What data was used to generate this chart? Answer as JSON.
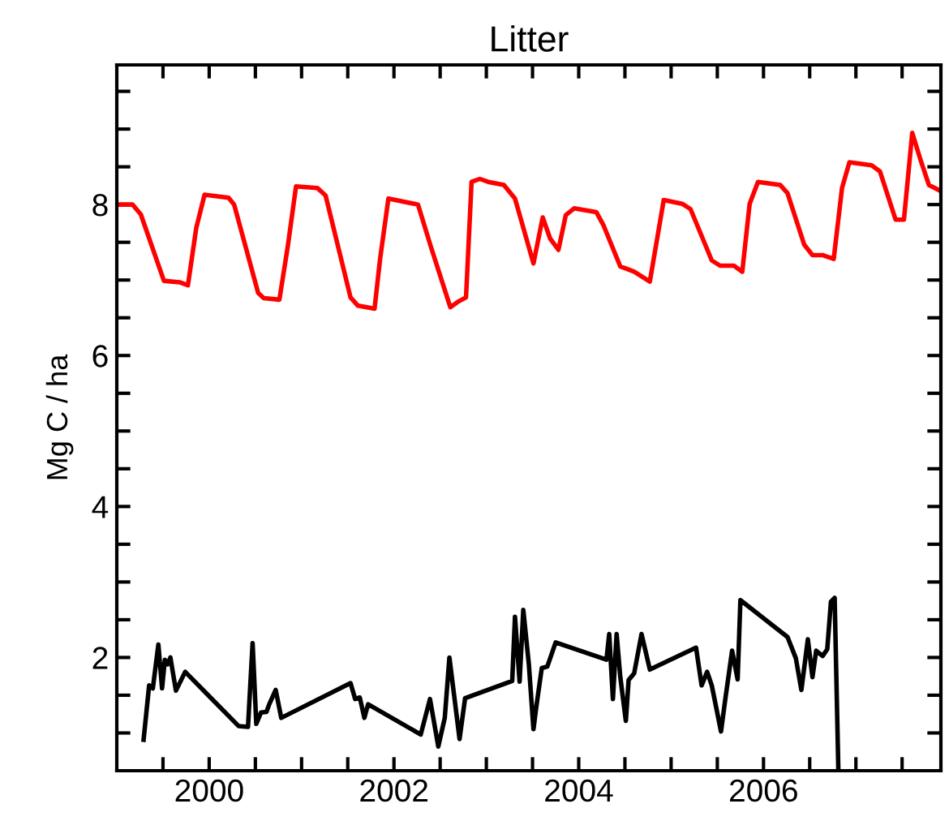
{
  "chart_data": {
    "type": "line",
    "title": "Litter",
    "ylabel": "Mg C / ha",
    "xlim": [
      1999.0,
      2007.92
    ],
    "ylim": [
      0.5,
      9.85
    ],
    "xticks": [
      {
        "value": 1999.5,
        "label": null
      },
      2000,
      {
        "value": 2000.5,
        "label": null
      },
      {
        "value": 2001,
        "label": null
      },
      {
        "value": 2001.5,
        "label": null
      },
      2002,
      {
        "value": 2002.5,
        "label": null
      },
      {
        "value": 2003,
        "label": null
      },
      {
        "value": 2003.5,
        "label": null
      },
      2004,
      {
        "value": 2004.5,
        "label": null
      },
      {
        "value": 2005,
        "label": null
      },
      {
        "value": 2005.5,
        "label": null
      },
      2006,
      {
        "value": 2006.5,
        "label": null
      },
      {
        "value": 2007,
        "label": null
      },
      {
        "value": 2007.5,
        "label": null
      }
    ],
    "yticks": [
      {
        "value": 1,
        "label": null
      },
      {
        "value": 1.5,
        "label": null
      },
      2,
      {
        "value": 2.5,
        "label": null
      },
      {
        "value": 3,
        "label": null
      },
      {
        "value": 3.5,
        "label": null
      },
      4,
      {
        "value": 4.5,
        "label": null
      },
      {
        "value": 5,
        "label": null
      },
      {
        "value": 5.5,
        "label": null
      },
      6,
      {
        "value": 6.5,
        "label": null
      },
      {
        "value": 7,
        "label": null
      },
      {
        "value": 7.5,
        "label": null
      },
      8,
      {
        "value": 8.5,
        "label": null
      },
      {
        "value": 9,
        "label": null
      },
      {
        "value": 9.5,
        "label": null
      }
    ],
    "marker": "none",
    "line_style": "solid",
    "series": [
      {
        "color": "#ff0000",
        "x": [
          1999.02,
          1999.17,
          1999.26,
          1999.51,
          1999.68,
          1999.77,
          1999.86,
          1999.95,
          2000.21,
          2000.27,
          2000.53,
          2000.59,
          2000.76,
          2000.85,
          2000.94,
          2001.17,
          2001.26,
          2001.53,
          2001.61,
          2001.79,
          2001.85,
          2001.94,
          2002.26,
          2002.4,
          2002.61,
          2002.69,
          2002.78,
          2002.84,
          2002.93,
          2003.02,
          2003.19,
          2003.31,
          2003.51,
          2003.61,
          2003.69,
          2003.78,
          2003.86,
          2003.95,
          2004.19,
          2004.27,
          2004.45,
          2004.6,
          2004.77,
          2004.92,
          2005.12,
          2005.21,
          2005.44,
          2005.53,
          2005.68,
          2005.77,
          2005.85,
          2005.94,
          2006.18,
          2006.26,
          2006.44,
          2006.53,
          2006.64,
          2006.76,
          2006.85,
          2006.93,
          2007.17,
          2007.26,
          2007.43,
          2007.52,
          2007.61,
          2007.7,
          2007.79,
          2007.9
        ],
        "values": [
          8.0,
          8.0,
          7.87,
          6.99,
          6.97,
          6.93,
          7.69,
          8.13,
          8.09,
          8.0,
          6.83,
          6.76,
          6.74,
          7.44,
          8.24,
          8.22,
          8.12,
          6.77,
          6.66,
          6.62,
          7.28,
          8.08,
          8.0,
          7.44,
          6.64,
          6.71,
          6.77,
          8.3,
          8.34,
          8.3,
          8.26,
          8.08,
          7.22,
          7.83,
          7.55,
          7.4,
          7.86,
          7.95,
          7.9,
          7.72,
          7.18,
          7.11,
          6.98,
          8.06,
          8.01,
          7.94,
          7.26,
          7.19,
          7.19,
          7.11,
          8.01,
          8.3,
          8.26,
          8.15,
          7.47,
          7.33,
          7.33,
          7.28,
          8.22,
          8.56,
          8.52,
          8.44,
          7.8,
          7.8,
          8.95,
          8.59,
          8.26,
          8.19
        ]
      },
      {
        "color": "#000000",
        "x": [
          1999.29,
          1999.35,
          1999.39,
          1999.45,
          1999.49,
          1999.52,
          1999.55,
          1999.58,
          1999.64,
          1999.74,
          2000.32,
          2000.42,
          2000.47,
          2000.51,
          2000.56,
          2000.62,
          2000.65,
          2000.72,
          2000.78,
          2001.53,
          2001.58,
          2001.63,
          2001.68,
          2001.72,
          2002.29,
          2002.39,
          2002.48,
          2002.55,
          2002.6,
          2002.71,
          2002.77,
          2003.28,
          2003.31,
          2003.36,
          2003.4,
          2003.46,
          2003.51,
          2003.54,
          2003.6,
          2003.66,
          2003.75,
          2004.3,
          2004.33,
          2004.37,
          2004.41,
          2004.45,
          2004.51,
          2004.54,
          2004.6,
          2004.68,
          2004.77,
          2005.27,
          2005.33,
          2005.39,
          2005.44,
          2005.54,
          2005.59,
          2005.66,
          2005.72,
          2005.75,
          2006.26,
          2006.35,
          2006.41,
          2006.48,
          2006.53,
          2006.57,
          2006.64,
          2006.69,
          2006.73,
          2006.77,
          2006.81
        ],
        "values": [
          0.91,
          1.63,
          1.59,
          2.17,
          1.59,
          1.97,
          1.91,
          2.0,
          1.56,
          1.81,
          1.09,
          1.08,
          2.19,
          1.12,
          1.27,
          1.28,
          1.38,
          1.57,
          1.2,
          1.66,
          1.45,
          1.47,
          1.2,
          1.38,
          0.98,
          1.45,
          0.82,
          1.2,
          2.0,
          0.92,
          1.46,
          1.69,
          2.54,
          1.68,
          2.63,
          1.91,
          1.05,
          1.34,
          1.86,
          1.88,
          2.2,
          1.97,
          2.31,
          1.45,
          2.31,
          1.74,
          1.16,
          1.7,
          1.79,
          2.31,
          1.84,
          2.13,
          1.63,
          1.81,
          1.63,
          1.02,
          1.48,
          2.09,
          1.71,
          2.76,
          2.27,
          1.99,
          1.57,
          2.24,
          1.74,
          2.09,
          2.02,
          2.11,
          2.74,
          2.79,
          0.52
        ]
      }
    ]
  }
}
